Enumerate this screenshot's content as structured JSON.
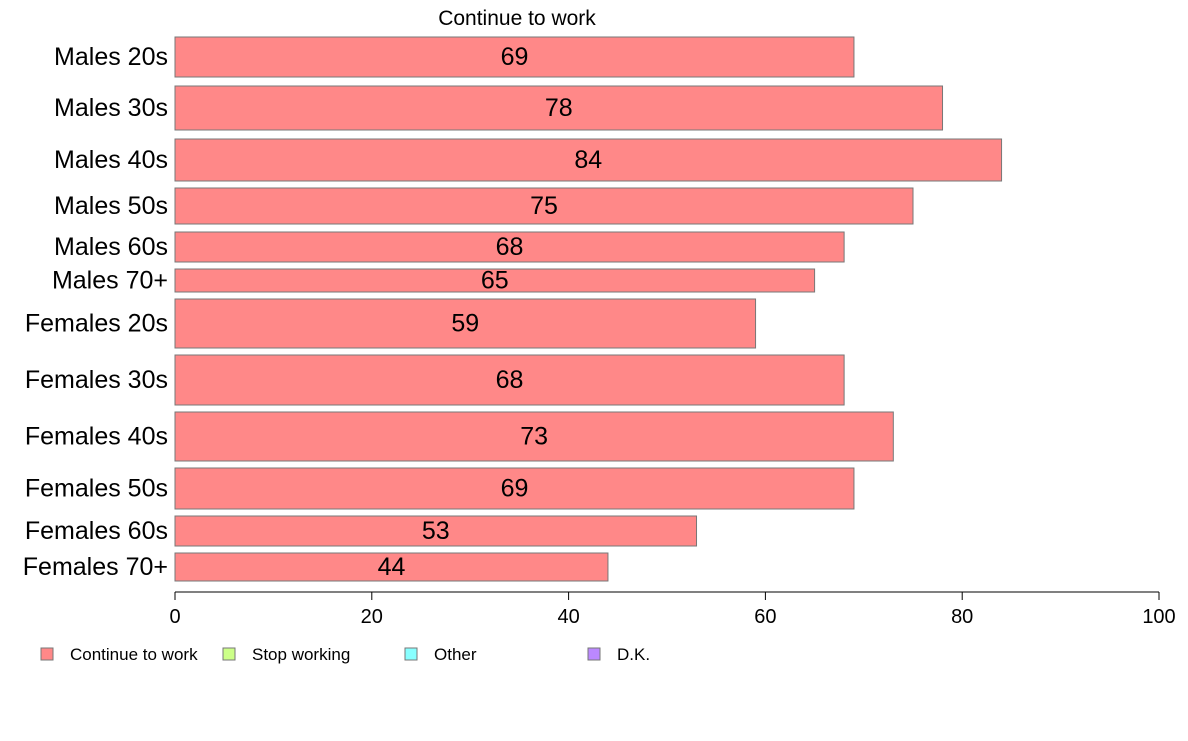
{
  "chart_data": {
    "type": "bar",
    "orientation": "horizontal",
    "title": "Continue to work",
    "categories": [
      "Males 20s",
      "Males 30s",
      "Males 40s",
      "Males 50s",
      "Males 60s",
      "Males 70+",
      "Females 20s",
      "Females 30s",
      "Females 40s",
      "Females 50s",
      "Females 60s",
      "Females 70+"
    ],
    "series": [
      {
        "name": "Continue to work",
        "color": "#FF8888",
        "values": [
          69,
          78,
          84,
          75,
          68,
          65,
          59,
          68,
          73,
          69,
          53,
          44
        ]
      }
    ],
    "xlim": [
      0,
      100
    ],
    "xticks": [
      0,
      20,
      40,
      60,
      80,
      100
    ],
    "legend": {
      "position": "bottom",
      "entries": [
        {
          "label": "Continue to work",
          "color": "#FF8888"
        },
        {
          "label": "Stop working",
          "color": "#CCFF88"
        },
        {
          "label": "Other",
          "color": "#88FFFF"
        },
        {
          "label": "D.K.",
          "color": "#BB88FF"
        }
      ]
    },
    "grid": false
  }
}
